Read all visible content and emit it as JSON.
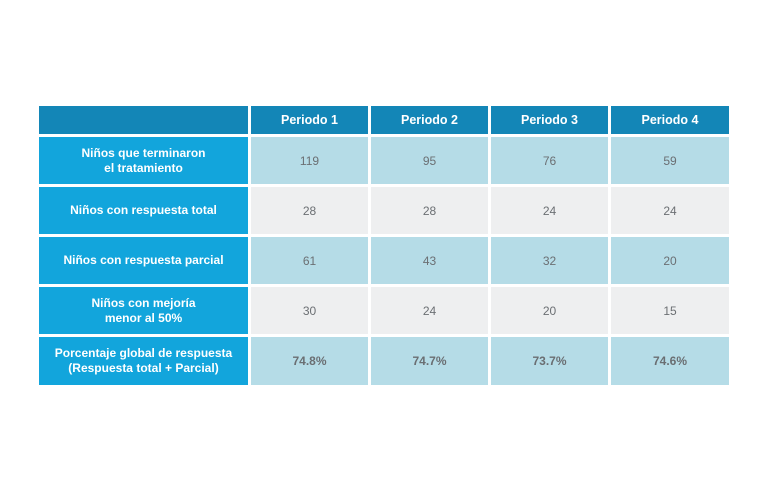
{
  "chart_data": {
    "type": "table",
    "columns": [
      "Periodo 1",
      "Periodo 2",
      "Periodo 3",
      "Periodo 4"
    ],
    "rows": [
      {
        "label": "Niños que terminaron\nel tratamiento",
        "values": [
          "119",
          "95",
          "76",
          "59"
        ],
        "style": "blue"
      },
      {
        "label": "Niños con respuesta total",
        "values": [
          "28",
          "28",
          "24",
          "24"
        ],
        "style": "grey"
      },
      {
        "label": "Niños con respuesta parcial",
        "values": [
          "61",
          "43",
          "32",
          "20"
        ],
        "style": "blue"
      },
      {
        "label": "Niños con mejoría\nmenor al 50%",
        "values": [
          "30",
          "24",
          "20",
          "15"
        ],
        "style": "grey"
      },
      {
        "label": "Porcentaje global de respuesta\n(Respuesta total + Parcial)",
        "values": [
          "74.8%",
          "74.7%",
          "73.7%",
          "74.6%"
        ],
        "style": "blue",
        "bold": true
      }
    ],
    "colors": {
      "header": "#1386b7",
      "row_label": "#12a5dc",
      "cell_blue": "#b5dce7",
      "cell_grey": "#eeeff0"
    }
  }
}
